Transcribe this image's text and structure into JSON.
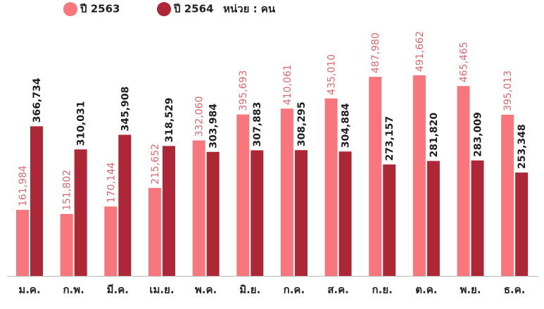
{
  "chart_data": {
    "type": "bar",
    "unit_note": "หน่วย : คน",
    "categories": [
      "ม.ค.",
      "ก.พ.",
      "มี.ค.",
      "เม.ย.",
      "พ.ค.",
      "มิ.ย.",
      "ก.ค.",
      "ส.ค.",
      "ก.ย.",
      "ต.ค.",
      "พ.ย.",
      "ธ.ค."
    ],
    "series": [
      {
        "name": "ปี 2563",
        "color": "#f8777c",
        "label_color": "#e2686f",
        "values": [
          161984,
          151802,
          170144,
          215652,
          332060,
          395693,
          410061,
          435010,
          487980,
          491662,
          465465,
          395013
        ],
        "value_labels": [
          "161,984",
          "151,802",
          "170,144",
          "215,652",
          "332,060",
          "395,693",
          "410,061",
          "435,010",
          "487,980",
          "491,662",
          "465,465",
          "395,013"
        ]
      },
      {
        "name": "ปี 2564",
        "color": "#ae2736",
        "label_color": "#1e1e1e",
        "values": [
          366734,
          310031,
          345908,
          318529,
          303984,
          307883,
          308295,
          304884,
          273157,
          281820,
          283009,
          253348
        ],
        "value_labels": [
          "366,734",
          "310,031",
          "345,908",
          "318,529",
          "303,984",
          "307,883",
          "308,295",
          "304,884",
          "273,157",
          "281,820",
          "283,009",
          "253,348"
        ]
      }
    ]
  }
}
